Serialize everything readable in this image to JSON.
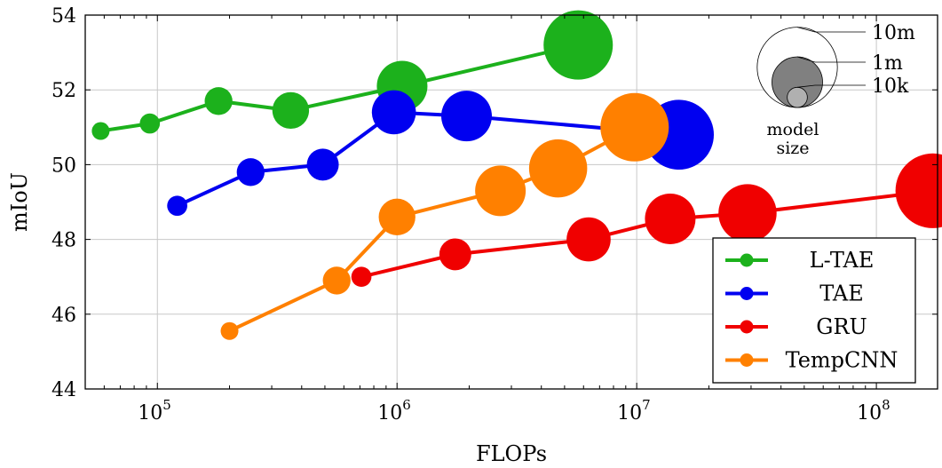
{
  "chart_data": {
    "type": "scatter",
    "xlabel": "FLOPs",
    "ylabel": "mIoU",
    "x_scale": "log",
    "xlim": [
      50000,
      180000000
    ],
    "ylim": [
      44,
      54
    ],
    "grid": true,
    "legend_position": "bottom-right",
    "x_tick_labels": [
      {
        "value": 100000,
        "label": "10",
        "exp": "5"
      },
      {
        "value": 1000000,
        "label": "10",
        "exp": "6"
      },
      {
        "value": 10000000,
        "label": "10",
        "exp": "7"
      },
      {
        "value": 100000000,
        "label": "10",
        "exp": "8"
      }
    ],
    "y_ticks": [
      "44",
      "46",
      "48",
      "50",
      "52",
      "54"
    ],
    "series": [
      {
        "name": "L-TAE",
        "color": "#1cb11c",
        "points": [
          {
            "x": 58000,
            "y": 50.9,
            "size": 1000
          },
          {
            "x": 93000,
            "y": 51.1,
            "size": 10000
          },
          {
            "x": 180000,
            "y": 51.7,
            "size": 50000
          },
          {
            "x": 360000,
            "y": 51.45,
            "size": 200000
          },
          {
            "x": 1050000,
            "y": 52.1,
            "size": 1000000
          },
          {
            "x": 5700000,
            "y": 53.2,
            "size": 4800000
          }
        ]
      },
      {
        "name": "TAE",
        "color": "#0000f0",
        "points": [
          {
            "x": 121000,
            "y": 48.9,
            "size": 10000
          },
          {
            "x": 245000,
            "y": 49.8,
            "size": 50000
          },
          {
            "x": 490000,
            "y": 50.0,
            "size": 100000
          },
          {
            "x": 970000,
            "y": 51.4,
            "size": 500000
          },
          {
            "x": 1950000,
            "y": 51.3,
            "size": 1000000
          },
          {
            "x": 15000000,
            "y": 50.8,
            "size": 5000000
          }
        ]
      },
      {
        "name": "GRU",
        "color": "#f00000",
        "points": [
          {
            "x": 710000,
            "y": 47.0,
            "size": 10000
          },
          {
            "x": 1750000,
            "y": 47.6,
            "size": 100000
          },
          {
            "x": 6300000,
            "y": 48.0,
            "size": 500000
          },
          {
            "x": 13800000,
            "y": 48.55,
            "size": 1000000
          },
          {
            "x": 29000000,
            "y": 48.7,
            "size": 2000000
          },
          {
            "x": 172000000,
            "y": 49.3,
            "size": 7000000
          }
        ]
      },
      {
        "name": "TempCNN",
        "color": "#ff8000",
        "points": [
          {
            "x": 200000,
            "y": 45.55,
            "size": 5000
          },
          {
            "x": 560000,
            "y": 46.9,
            "size": 50000
          },
          {
            "x": 1000000,
            "y": 48.6,
            "size": 200000
          },
          {
            "x": 2700000,
            "y": 49.3,
            "size": 1000000
          },
          {
            "x": 4700000,
            "y": 49.9,
            "size": 2000000
          },
          {
            "x": 9800000,
            "y": 51.0,
            "size": 4500000
          }
        ]
      }
    ],
    "size_legend": {
      "caption_line1": "model",
      "caption_line2": "size",
      "entries": [
        {
          "label": "10m",
          "size": 10000000
        },
        {
          "label": "1m",
          "size": 1000000
        },
        {
          "label": "10k",
          "size": 10000
        }
      ]
    }
  }
}
